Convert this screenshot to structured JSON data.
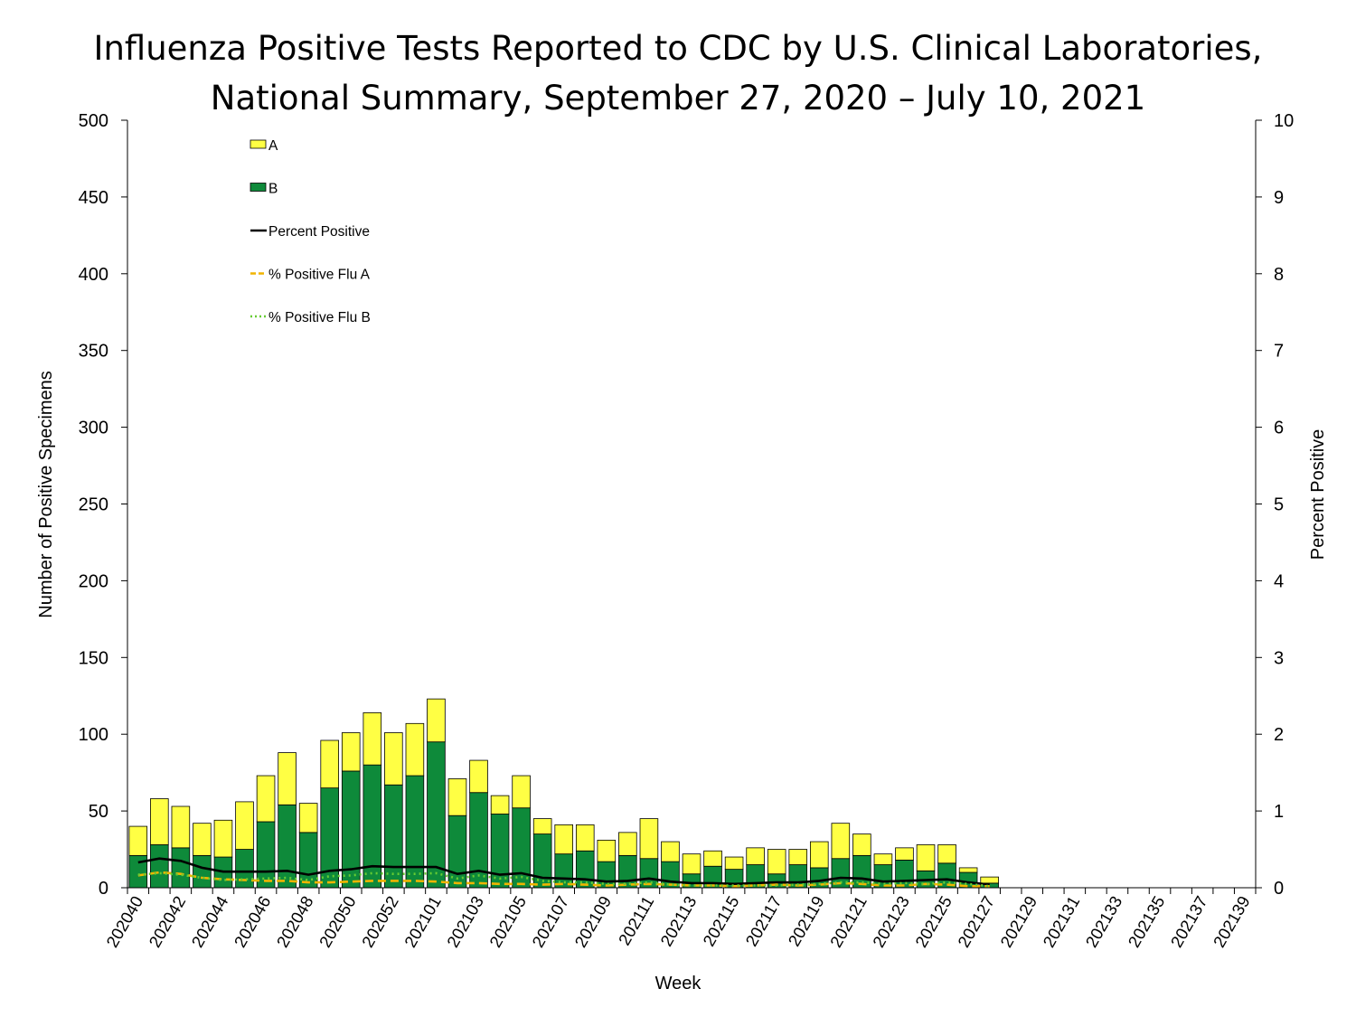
{
  "chart_data": {
    "type": "bar",
    "title_line1": "Influenza Positive Tests Reported to CDC by U.S. Clinical Laboratories,",
    "title_line2": "National Summary, September 27, 2020 – July 10, 2021",
    "xlabel": "Week",
    "ylabel": "Number of Positive Specimens",
    "y2label": "Percent Positive",
    "ylim": [
      0,
      500
    ],
    "y2lim": [
      0,
      10
    ],
    "yticks": [
      0,
      50,
      100,
      150,
      200,
      250,
      300,
      350,
      400,
      450,
      500
    ],
    "y2ticks": [
      0,
      1,
      2,
      3,
      4,
      5,
      6,
      7,
      8,
      9,
      10
    ],
    "stacked": true,
    "legend_position": "top-left",
    "grid": false,
    "weeks": [
      "202040",
      "202041",
      "202042",
      "202043",
      "202044",
      "202045",
      "202046",
      "202047",
      "202048",
      "202049",
      "202050",
      "202051",
      "202052",
      "202053",
      "202101",
      "202102",
      "202103",
      "202104",
      "202105",
      "202106",
      "202107",
      "202108",
      "202109",
      "202110",
      "202111",
      "202112",
      "202113",
      "202114",
      "202115",
      "202116",
      "202117",
      "202118",
      "202119",
      "202120",
      "202121",
      "202122",
      "202123",
      "202124",
      "202125",
      "202126",
      "202127",
      "202128",
      "202129",
      "202130",
      "202131",
      "202132",
      "202133",
      "202134",
      "202135",
      "202136",
      "202137",
      "202138",
      "202139"
    ],
    "xtick_labels": [
      "202040",
      "202042",
      "202044",
      "202046",
      "202048",
      "202050",
      "202052",
      "202101",
      "202103",
      "202105",
      "202107",
      "202109",
      "202111",
      "202113",
      "202115",
      "202117",
      "202119",
      "202121",
      "202123",
      "202125",
      "202127",
      "202129",
      "202131",
      "202133",
      "202135",
      "202137",
      "202139"
    ],
    "series": [
      {
        "name": "B",
        "type": "bar",
        "axis": "left",
        "color": "#0e8a3a",
        "values": [
          21,
          28,
          26,
          21,
          20,
          25,
          43,
          54,
          36,
          65,
          76,
          80,
          67,
          73,
          95,
          47,
          62,
          48,
          52,
          35,
          22,
          24,
          17,
          21,
          19,
          17,
          9,
          14,
          12,
          15,
          9,
          15,
          13,
          19,
          21,
          15,
          18,
          11,
          16,
          10,
          3,
          0,
          0,
          0,
          0,
          0,
          0,
          0,
          0,
          0,
          0,
          0,
          0
        ]
      },
      {
        "name": "A",
        "type": "bar",
        "axis": "left",
        "color": "#ffff44",
        "values": [
          19,
          30,
          27,
          21,
          24,
          31,
          30,
          34,
          19,
          31,
          25,
          34,
          34,
          34,
          28,
          24,
          21,
          12,
          21,
          10,
          19,
          17,
          14,
          15,
          26,
          13,
          13,
          10,
          8,
          11,
          16,
          10,
          17,
          23,
          14,
          7,
          8,
          17,
          12,
          3,
          4,
          0,
          0,
          0,
          0,
          0,
          0,
          0,
          0,
          0,
          0,
          0,
          0
        ]
      },
      {
        "name": "Percent Positive",
        "type": "line",
        "axis": "right",
        "color": "#000000",
        "values": [
          0.33,
          0.38,
          0.35,
          0.26,
          0.21,
          0.21,
          0.21,
          0.22,
          0.17,
          0.22,
          0.24,
          0.28,
          0.27,
          0.27,
          0.27,
          0.18,
          0.22,
          0.17,
          0.19,
          0.13,
          0.12,
          0.11,
          0.08,
          0.09,
          0.12,
          0.08,
          0.06,
          0.06,
          0.05,
          0.06,
          0.07,
          0.07,
          0.09,
          0.13,
          0.12,
          0.08,
          0.09,
          0.1,
          0.11,
          0.07,
          0.04,
          null,
          null,
          null,
          null,
          null,
          null,
          null,
          null,
          null,
          null,
          null,
          null
        ]
      },
      {
        "name": "% Positive Flu A",
        "type": "line",
        "axis": "right",
        "color": "#f0b400",
        "values": [
          0.16,
          0.2,
          0.18,
          0.13,
          0.11,
          0.1,
          0.09,
          0.09,
          0.07,
          0.07,
          0.08,
          0.09,
          0.09,
          0.09,
          0.08,
          0.06,
          0.06,
          0.05,
          0.05,
          0.04,
          0.05,
          0.04,
          0.03,
          0.04,
          0.05,
          0.04,
          0.03,
          0.03,
          0.02,
          0.03,
          0.04,
          0.03,
          0.04,
          0.06,
          0.05,
          0.03,
          0.03,
          0.05,
          0.04,
          0.02,
          0.02,
          null,
          null,
          null,
          null,
          null,
          null,
          null,
          null,
          null,
          null,
          null,
          null
        ]
      },
      {
        "name": "% Positive Flu B",
        "type": "line",
        "axis": "right",
        "color": "#66cc33",
        "values": [
          0.17,
          0.19,
          0.17,
          0.13,
          0.1,
          0.11,
          0.12,
          0.13,
          0.1,
          0.15,
          0.16,
          0.19,
          0.18,
          0.18,
          0.19,
          0.12,
          0.16,
          0.12,
          0.14,
          0.09,
          0.07,
          0.07,
          0.05,
          0.05,
          0.07,
          0.04,
          0.03,
          0.03,
          0.03,
          0.03,
          0.03,
          0.04,
          0.05,
          0.07,
          0.07,
          0.05,
          0.06,
          0.05,
          0.07,
          0.05,
          0.02,
          null,
          null,
          null,
          null,
          null,
          null,
          null,
          null,
          null,
          null,
          null,
          null
        ]
      }
    ],
    "legend": [
      {
        "label": "A",
        "kind": "box",
        "color": "#ffff44"
      },
      {
        "label": "B",
        "kind": "box",
        "color": "#0e8a3a"
      },
      {
        "label": "Percent Positive",
        "kind": "line",
        "color": "#000000",
        "dash": "solid"
      },
      {
        "label": "% Positive Flu A",
        "kind": "line",
        "color": "#f0b400",
        "dash": "dashed"
      },
      {
        "label": "% Positive Flu B",
        "kind": "line",
        "color": "#66cc33",
        "dash": "dotted"
      }
    ]
  }
}
